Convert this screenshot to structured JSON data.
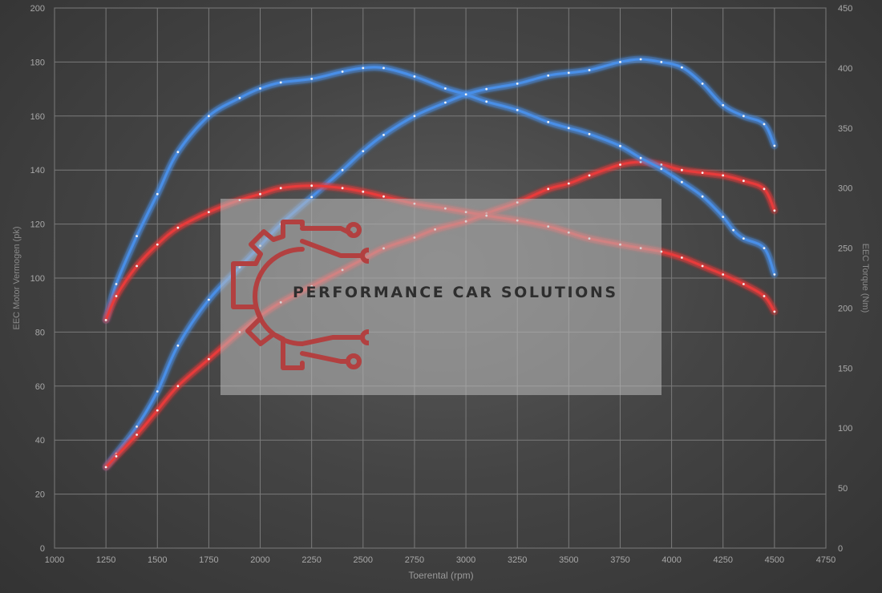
{
  "chart_data": {
    "type": "line",
    "xlabel": "Toerental (rpm)",
    "ylabel": "EEC Motor Vermogen (pk)",
    "y2label": "EEC Torque (Nm)",
    "xlim": [
      1000,
      4750
    ],
    "ylim": [
      0,
      200
    ],
    "y2lim": [
      0,
      450
    ],
    "x_ticks": [
      1000,
      1250,
      1500,
      1750,
      2000,
      2250,
      2500,
      2750,
      3000,
      3250,
      3500,
      3750,
      4000,
      4250,
      4500,
      4750
    ],
    "y_ticks": [
      0,
      20,
      40,
      60,
      80,
      100,
      120,
      140,
      160,
      180,
      200
    ],
    "y2_ticks": [
      0,
      50,
      100,
      150,
      200,
      250,
      300,
      350,
      400,
      450
    ],
    "grid": true,
    "series": [
      {
        "axis": "left",
        "color": "#4a8fe8",
        "x": [
          1250,
          1300,
          1400,
          1500,
          1600,
          1750,
          1900,
          2000,
          2100,
          2250,
          2400,
          2500,
          2600,
          2750,
          2900,
          3000,
          3100,
          3250,
          3400,
          3500,
          3600,
          3750,
          3850,
          3950,
          4050,
          4150,
          4250,
          4350,
          4450,
          4500
        ],
        "y": [
          30,
          35,
          45,
          58,
          75,
          92,
          104,
          112,
          120,
          130,
          140,
          147,
          153,
          160,
          165,
          168,
          170,
          172,
          175,
          176,
          177,
          180,
          181,
          180,
          178,
          172,
          164,
          160,
          157,
          149
        ]
      },
      {
        "axis": "left",
        "color": "#e83a3a",
        "x": [
          1250,
          1300,
          1400,
          1500,
          1600,
          1750,
          1900,
          2000,
          2100,
          2250,
          2400,
          2500,
          2600,
          2750,
          2850,
          3000,
          3100,
          3250,
          3400,
          3500,
          3600,
          3750,
          3850,
          3950,
          4050,
          4150,
          4250,
          4350,
          4450,
          4500
        ],
        "y": [
          30,
          34,
          42,
          51,
          60,
          70,
          80,
          86,
          91,
          97,
          103,
          107,
          111,
          115,
          118,
          121,
          124,
          128,
          133,
          135,
          138,
          142,
          143,
          142,
          140,
          139,
          138,
          136,
          133,
          125
        ]
      },
      {
        "axis": "right",
        "color": "#4a8fe8",
        "x": [
          1250,
          1300,
          1400,
          1500,
          1600,
          1750,
          1900,
          2000,
          2100,
          2250,
          2400,
          2500,
          2600,
          2750,
          2900,
          3000,
          3100,
          3250,
          3400,
          3500,
          3600,
          3750,
          3850,
          3950,
          4050,
          4150,
          4250,
          4300,
          4350,
          4450,
          4500
        ],
        "y": [
          190,
          220,
          260,
          295,
          330,
          360,
          375,
          383,
          388,
          391,
          397,
          400,
          400,
          393,
          383,
          378,
          372,
          365,
          355,
          350,
          345,
          335,
          325,
          316,
          305,
          293,
          276,
          265,
          258,
          250,
          228
        ]
      },
      {
        "axis": "right",
        "color": "#e83a3a",
        "x": [
          1250,
          1300,
          1400,
          1500,
          1600,
          1750,
          1900,
          2000,
          2100,
          2250,
          2400,
          2500,
          2600,
          2750,
          2900,
          3000,
          3100,
          3250,
          3400,
          3500,
          3600,
          3750,
          3850,
          3950,
          4050,
          4150,
          4250,
          4350,
          4450,
          4500
        ],
        "y": [
          190,
          210,
          235,
          253,
          267,
          280,
          290,
          295,
          300,
          302,
          300,
          297,
          293,
          287,
          283,
          280,
          277,
          273,
          268,
          263,
          258,
          253,
          250,
          247,
          242,
          235,
          228,
          220,
          210,
          197
        ]
      }
    ]
  },
  "watermark": {
    "brand": "PERFORMANCE CAR SOLUTIONS"
  }
}
